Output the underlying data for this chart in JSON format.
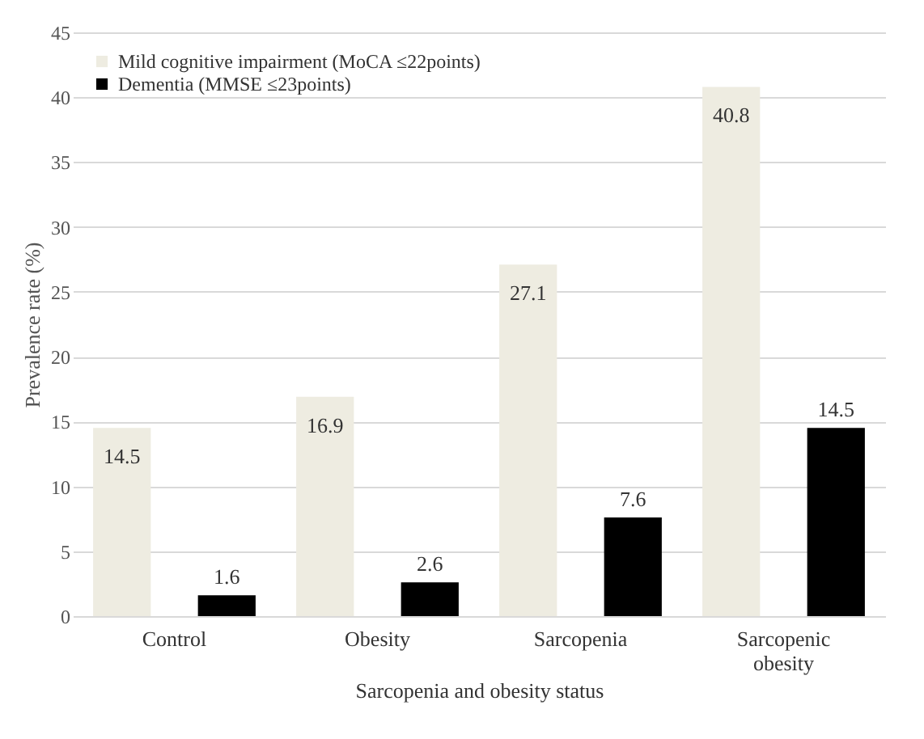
{
  "chart_data": {
    "type": "bar",
    "xlabel": "Sarcopenia and obesity status",
    "ylabel": "Prevalence rate (%)",
    "categories": [
      "Control",
      "Obesity",
      "Sarcopenia",
      "Sarcopenic obesity"
    ],
    "series": [
      {
        "name": "Mild cognitive impairment (MoCA ≤22points)",
        "color": "#eeece1",
        "values": [
          14.5,
          16.9,
          27.1,
          40.8
        ]
      },
      {
        "name": "Dementia (MMSE ≤23points)",
        "color": "#000000",
        "values": [
          1.6,
          2.6,
          7.6,
          14.5
        ]
      }
    ],
    "ylim": [
      0,
      45
    ],
    "yticks": [
      0,
      5,
      10,
      15,
      20,
      25,
      30,
      35,
      40,
      45
    ],
    "grid": "y",
    "legend": "top left",
    "data_labels": true
  }
}
